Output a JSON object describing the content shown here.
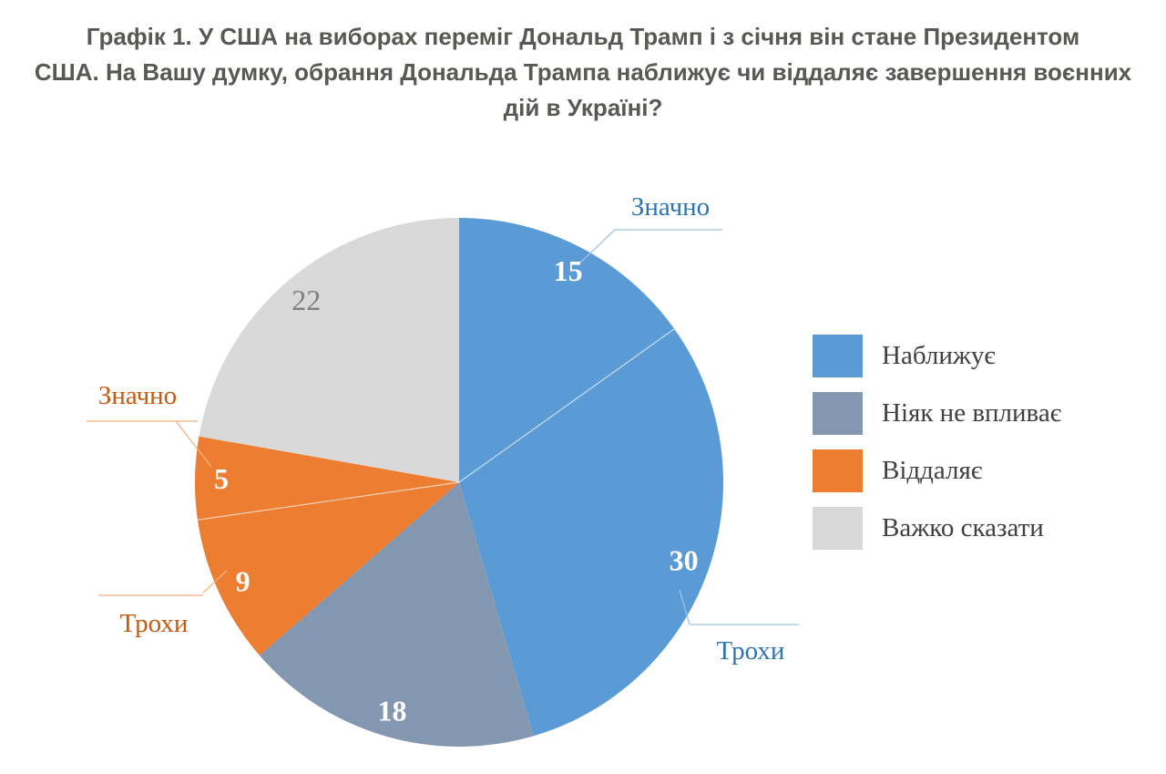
{
  "page": {
    "background": "#FFFFFF"
  },
  "title": {
    "lines": [
      "Графік 1. У США на виборах переміг Дональд Трамп і з січня він стане Президентом",
      "США. На Вашу думку, обрання Дональда Трампа наближує чи віддаляє завершення воєнних",
      "дій в Україні?"
    ],
    "color": "#595953"
  },
  "chart_data": {
    "type": "pie",
    "unit": "percent",
    "values_total_shown": 99,
    "start_angle_deg": 0,
    "direction": "clockwise",
    "grid": false,
    "slices": [
      {
        "value": 15,
        "category": "Наближує",
        "qualifier": "Значно",
        "color": "#5B9BD5",
        "value_label_color": "#FFFFFF",
        "value_label_weight": "bold"
      },
      {
        "value": 30,
        "category": "Наближує",
        "qualifier": "Трохи",
        "color": "#5B9BD5",
        "value_label_color": "#FFFFFF",
        "value_label_weight": "bold"
      },
      {
        "value": 18,
        "category": "Ніяк не впливає",
        "qualifier": "",
        "color": "#8497B0",
        "value_label_color": "#FFFFFF",
        "value_label_weight": "bold"
      },
      {
        "value": 9,
        "category": "Віддаляє",
        "qualifier": "Трохи",
        "color": "#ED7D31",
        "value_label_color": "#FFFFFF",
        "value_label_weight": "bold"
      },
      {
        "value": 5,
        "category": "Віддаляє",
        "qualifier": "Значно",
        "color": "#ED7D31",
        "value_label_color": "#FFFFFF",
        "value_label_weight": "bold"
      },
      {
        "value": 22,
        "category": "Важко сказати",
        "qualifier": "",
        "color": "#D9D9D9",
        "value_label_color": "#7F7F7F",
        "value_label_weight": "normal"
      }
    ],
    "legend": {
      "position": "right",
      "entries": [
        {
          "label": "Наближує",
          "color": "#5B9BD5"
        },
        {
          "label": "Ніяк не впливає",
          "color": "#8497B0"
        },
        {
          "label": "Віддаляє",
          "color": "#ED7D31"
        },
        {
          "label": "Важко сказати",
          "color": "#D9D9D9"
        }
      ]
    },
    "annotations": [
      {
        "text": "Значно",
        "target_value": 15,
        "text_color": "#2E75B6",
        "line_color": "#9DC3E6"
      },
      {
        "text": "Трохи",
        "target_value": 30,
        "text_color": "#2E75B6",
        "line_color": "#9DC3E6"
      },
      {
        "text": "Значно",
        "target_value": 5,
        "text_color": "#C55A11",
        "line_color": "#F4B183"
      },
      {
        "text": "Трохи",
        "target_value": 9,
        "text_color": "#C55A11",
        "line_color": "#F4B183"
      }
    ]
  }
}
